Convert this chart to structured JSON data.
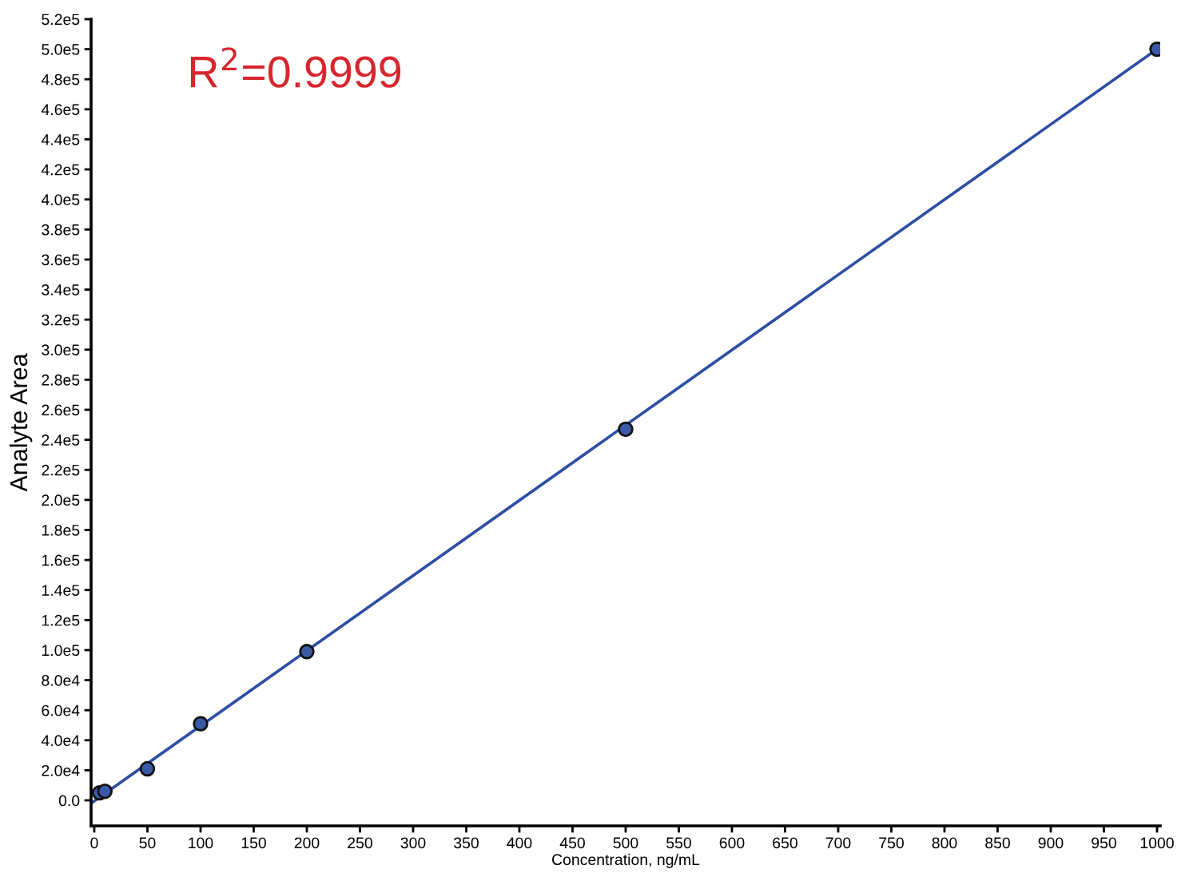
{
  "chart_data": {
    "type": "scatter",
    "xlabel": "Concentration, ng/mL",
    "ylabel": "Analyte Area",
    "annotations": [
      "R$^{2}$=0.9999"
    ],
    "series": [
      {
        "color": "#3a5aa8",
        "marker": "circle",
        "x": [
          5,
          10,
          50,
          100,
          200,
          500,
          1000
        ],
        "values": [
          5000,
          6000,
          21000,
          51000,
          99000,
          247000,
          500000
        ]
      },
      {
        "type": "line",
        "color": "#2d4ea3",
        "marker": "none",
        "x": [
          -3,
          1000
        ],
        "values": [
          -2000,
          500000
        ]
      }
    ],
    "xlim": [
      -3,
      1003
    ],
    "ylim": [
      -17000,
      520000
    ],
    "xticks": [
      0,
      50,
      100,
      150,
      200,
      250,
      300,
      350,
      400,
      450,
      500,
      550,
      600,
      650,
      700,
      750,
      800,
      850,
      900,
      950,
      1000
    ],
    "yticks": [
      {
        "value": 0,
        "label": "0.0"
      },
      {
        "value": 20000,
        "label": "2.0e4"
      },
      {
        "value": 40000,
        "label": "4.0e4"
      },
      {
        "value": 60000,
        "label": "6.0e4"
      },
      {
        "value": 80000,
        "label": "8.0e4"
      },
      {
        "value": 100000,
        "label": "1.0e5"
      },
      {
        "value": 120000,
        "label": "1.2e5"
      },
      {
        "value": 140000,
        "label": "1.4e5"
      },
      {
        "value": 160000,
        "label": "1.6e5"
      },
      {
        "value": 180000,
        "label": "1.8e5"
      },
      {
        "value": 200000,
        "label": "2.0e5"
      },
      {
        "value": 220000,
        "label": "2.2e5"
      },
      {
        "value": 240000,
        "label": "2.4e5"
      },
      {
        "value": 260000,
        "label": "2.6e5"
      },
      {
        "value": 280000,
        "label": "2.8e5"
      },
      {
        "value": 300000,
        "label": "3.0e5"
      },
      {
        "value": 320000,
        "label": "3.2e5"
      },
      {
        "value": 340000,
        "label": "3.4e5"
      },
      {
        "value": 360000,
        "label": "3.6e5"
      },
      {
        "value": 380000,
        "label": "3.8e5"
      },
      {
        "value": 400000,
        "label": "4.0e5"
      },
      {
        "value": 420000,
        "label": "4.2e5"
      },
      {
        "value": 440000,
        "label": "4.4e5"
      },
      {
        "value": 460000,
        "label": "4.6e5"
      },
      {
        "value": 480000,
        "label": "4.8e5"
      },
      {
        "value": 500000,
        "label": "5.0e5"
      },
      {
        "value": 520000,
        "label": "5.2e5"
      }
    ],
    "grid": false
  }
}
